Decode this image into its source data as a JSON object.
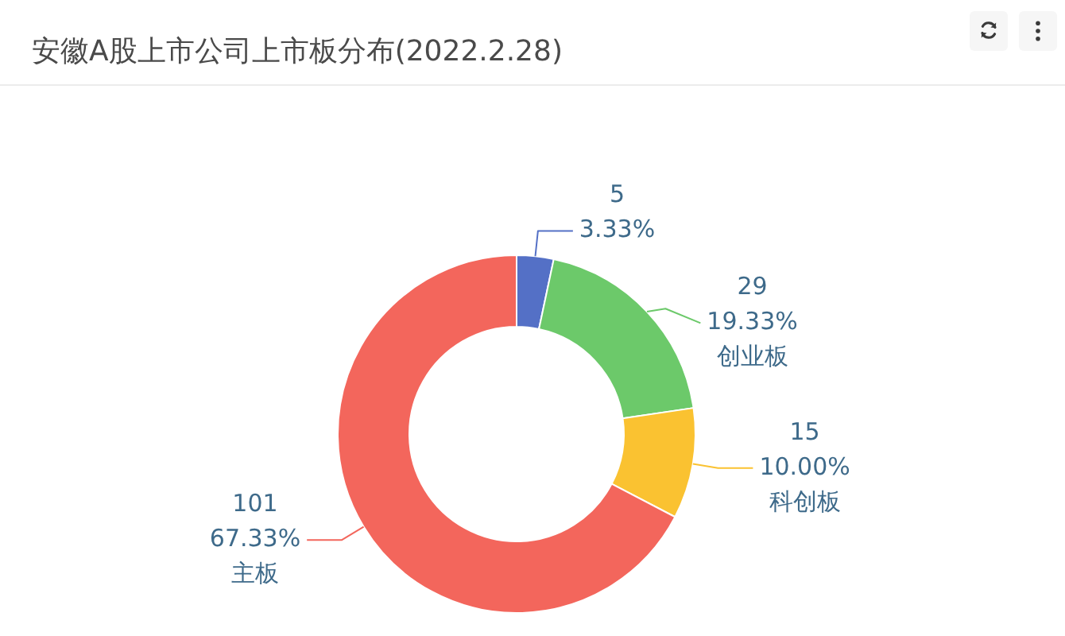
{
  "chart_data": {
    "type": "donut",
    "title": "安徽A股上市公司上市板分布(2022.2.28)",
    "categories": [
      null,
      "创业板",
      "科创板",
      "主板"
    ],
    "values": [
      5,
      29,
      15,
      101
    ],
    "colors": [
      "#5470c6",
      "#6cc96a",
      "#fac231",
      "#f3665c"
    ],
    "value_labels": [
      "5\n3.33%",
      "29\n19.33%",
      "15\n10.00%",
      "101\n67.33%"
    ]
  }
}
